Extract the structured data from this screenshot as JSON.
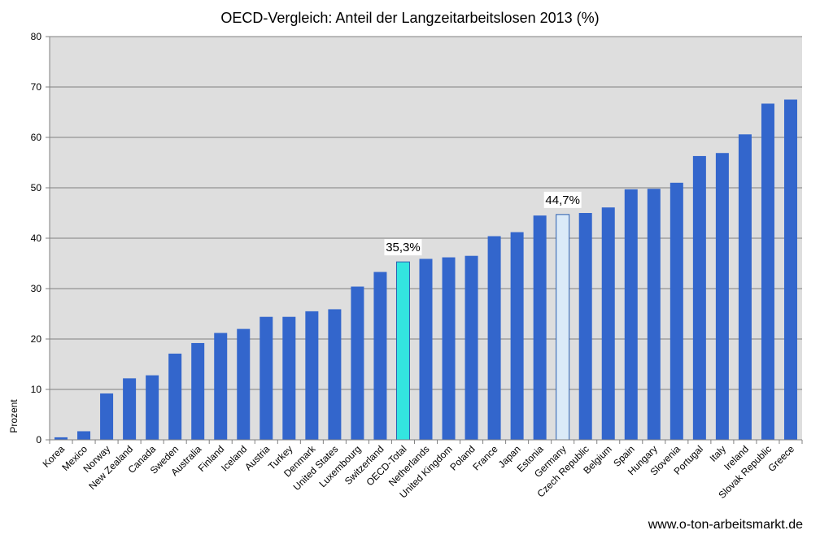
{
  "colors": {
    "default_bar": "#3366cc",
    "highlight_oecd": "#33e5e0",
    "highlight_germany": "#dbeaf8",
    "plot_background": "#dedede",
    "gridline": "#808080",
    "axis": "#808080",
    "text": "#000000"
  },
  "chart_data": {
    "type": "bar",
    "title": "OECD-Vergleich: Anteil der Langzeitarbeitslosen 2013 (%)",
    "xlabel": "",
    "ylabel": "Prozent",
    "ylim": [
      0,
      80
    ],
    "yticks": [
      0,
      10,
      20,
      30,
      40,
      50,
      60,
      70,
      80
    ],
    "grid": true,
    "legend": "none",
    "categories": [
      "Korea",
      "Mexico",
      "Norway",
      "New Zealand",
      "Canada",
      "Sweden",
      "Australia",
      "Finland",
      "Iceland",
      "Austria",
      "Turkey",
      "Denmark",
      "United States",
      "Luxembourg",
      "Switzerland",
      "OECD-Total",
      "Netherlands",
      "United Kingdom",
      "Poland",
      "France",
      "Japan",
      "Estonia",
      "Germany",
      "Czech Republic",
      "Belgium",
      "Spain",
      "Hungary",
      "Slovenia",
      "Portugal",
      "Italy",
      "Ireland",
      "Slovak Republic",
      "Greece"
    ],
    "values": [
      0.5,
      1.7,
      9.2,
      12.2,
      12.8,
      17.1,
      19.2,
      21.2,
      22.0,
      24.4,
      24.4,
      25.5,
      25.9,
      30.4,
      33.3,
      35.3,
      35.9,
      36.2,
      36.5,
      40.4,
      41.2,
      44.5,
      44.7,
      45.0,
      46.1,
      49.7,
      49.8,
      51.0,
      56.3,
      56.9,
      60.6,
      66.7,
      67.5
    ],
    "highlights": [
      {
        "category": "OECD-Total",
        "label": "35,3%",
        "color": "#33e5e0"
      },
      {
        "category": "Germany",
        "label": "44,7%",
        "color": "#dbeaf8"
      }
    ]
  },
  "footer": {
    "source_text": "www.o-ton-arbeitsmarkt.de"
  }
}
